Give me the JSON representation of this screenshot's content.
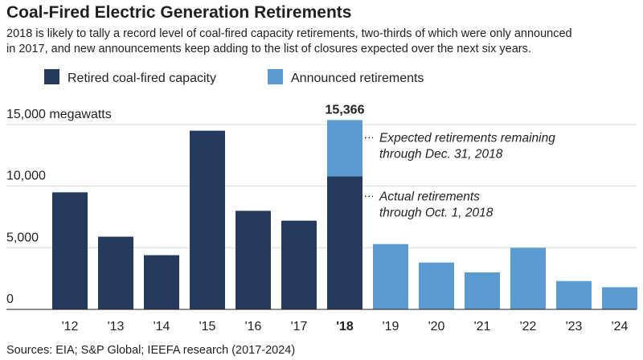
{
  "chart_data": {
    "type": "bar",
    "title": "Coal-Fired Electric Generation Retirements",
    "subtitle_lines": [
      "2018 is likely to tally a record level of coal-fired capacity retirements, two-thirds of which were only announced",
      "in 2017, and new announcements keep adding to the list of closures expected over the next six years."
    ],
    "ylabel": "megawatts",
    "ylim": [
      0,
      15500
    ],
    "yticks": [
      {
        "value": 15000,
        "label": "15,000 megawatts"
      },
      {
        "value": 10000,
        "label": "10,000"
      },
      {
        "value": 5000,
        "label": "5,000"
      },
      {
        "value": 0,
        "label": "0"
      }
    ],
    "grid": true,
    "legend_position": "top-left",
    "categories": [
      "'12",
      "'13",
      "'14",
      "'15",
      "'16",
      "'17",
      "'18",
      "'19",
      "'20",
      "'21",
      "'22",
      "'23",
      "'24"
    ],
    "series": [
      {
        "name": "Retired coal-fired capacity",
        "color": "#253a5c",
        "values": [
          9500,
          5900,
          4400,
          14500,
          8000,
          7200,
          10800,
          0,
          0,
          0,
          0,
          0,
          0
        ]
      },
      {
        "name": "Announced retirements",
        "color": "#5b9bd1",
        "values": [
          0,
          0,
          0,
          0,
          0,
          0,
          4566,
          5300,
          3800,
          3000,
          5000,
          2300,
          1800
        ]
      }
    ],
    "stacked": true,
    "data_labels": [
      {
        "category": "'18",
        "text": "15,366"
      }
    ],
    "annotations": [
      {
        "category": "'18",
        "series": "Announced retirements",
        "lines": [
          "Expected retirements remaining",
          "through Dec. 31, 2018"
        ]
      },
      {
        "category": "'18",
        "series": "Retired coal-fired capacity",
        "lines": [
          "Actual retirements",
          "through Oct. 1, 2018"
        ]
      }
    ],
    "bold_category": "'18",
    "source": "Sources: EIA; S&P Global; IEEFA research (2017-2024)"
  },
  "colors": {
    "grid": "#d9d9d9",
    "axis": "#231f20",
    "dark": "#253a5c",
    "light": "#5b9bd1"
  }
}
